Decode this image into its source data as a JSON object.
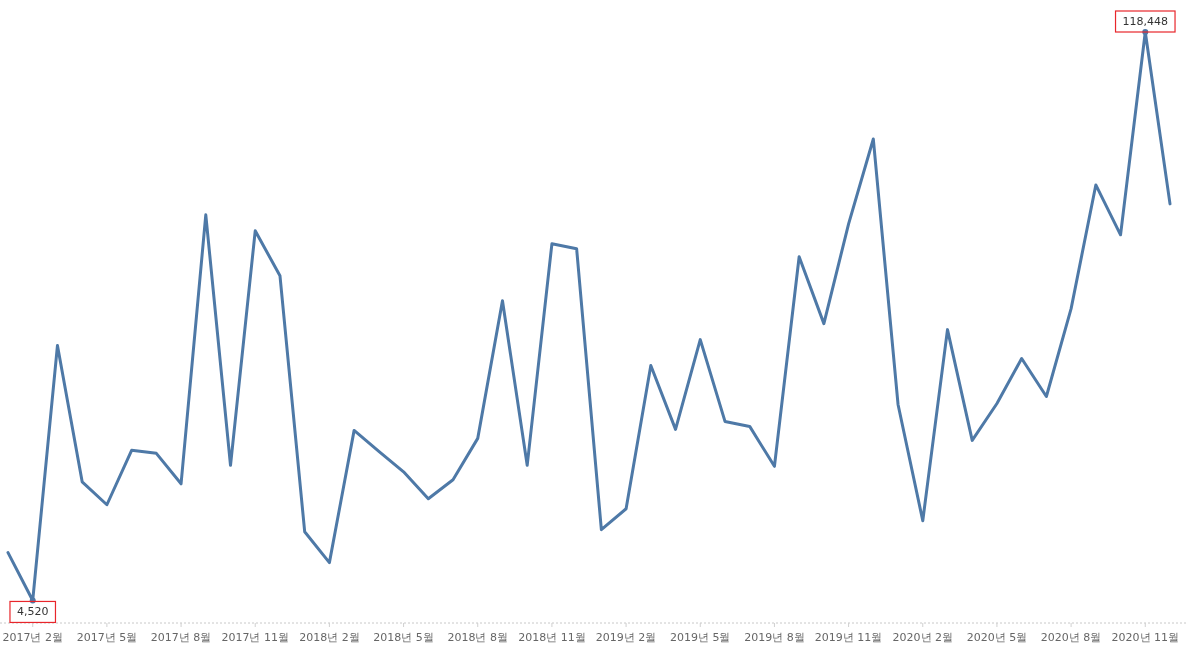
{
  "chart_data": {
    "type": "line",
    "categories": [
      null,
      "2017년 2월",
      null,
      null,
      "2017년 5월",
      null,
      null,
      "2017년 8월",
      null,
      null,
      "2017년 11월",
      null,
      null,
      "2018년 2월",
      null,
      null,
      "2018년 5월",
      null,
      null,
      "2018년 8월",
      null,
      null,
      "2018년 11월",
      null,
      null,
      "2019년 2월",
      null,
      null,
      "2019년 5월",
      null,
      null,
      "2019년 8월",
      null,
      null,
      "2019년 11월",
      null,
      null,
      "2020년 2월",
      null,
      null,
      "2020년 5월",
      null,
      null,
      "2020년 8월",
      null,
      null,
      "2020년 11월",
      null
    ],
    "series": [
      {
        "color": "#4e79a7",
        "values": [
          14100,
          4520,
          55600,
          28300,
          23700,
          34600,
          34000,
          27900,
          81800,
          31600,
          78600,
          69600,
          18300,
          12100,
          38600,
          34400,
          30300,
          24900,
          28700,
          37000,
          64600,
          31600,
          76000,
          75000,
          18700,
          22900,
          51600,
          38800,
          56800,
          40400,
          39400,
          31400,
          73400,
          60000,
          80000,
          97000,
          43800,
          20500,
          58800,
          36600,
          44000,
          53000,
          45400,
          63000,
          87800,
          77800,
          118448,
          84000
        ],
        "value_labels": [
          null,
          "4,520",
          null,
          null,
          null,
          null,
          null,
          null,
          null,
          null,
          null,
          null,
          null,
          null,
          null,
          null,
          null,
          null,
          null,
          null,
          null,
          null,
          null,
          null,
          null,
          null,
          null,
          null,
          null,
          null,
          null,
          null,
          null,
          null,
          null,
          null,
          null,
          null,
          null,
          null,
          null,
          null,
          null,
          null,
          null,
          null,
          "118,448",
          null
        ]
      }
    ],
    "tick_labels": "x",
    "line_style": "solid"
  }
}
